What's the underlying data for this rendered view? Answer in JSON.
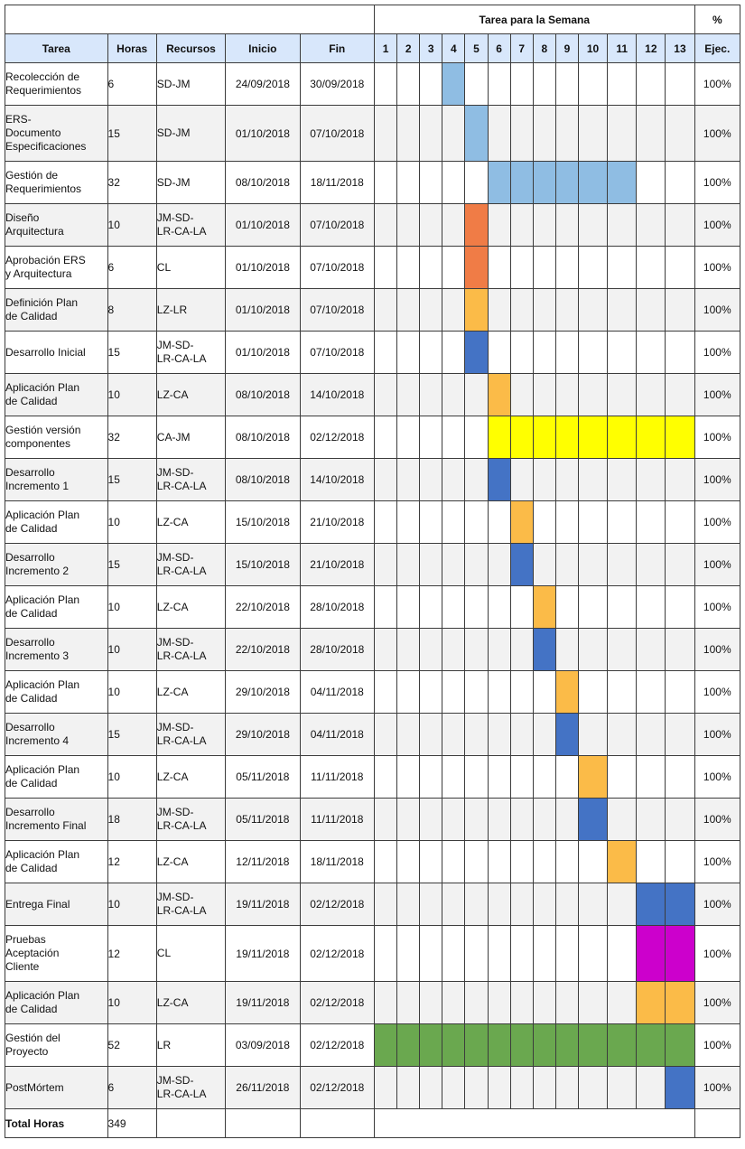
{
  "header": {
    "weeks_title": "Tarea para la Semana",
    "percent_top": "%",
    "col_task": "Tarea",
    "col_hours": "Horas",
    "col_resources": "Recursos",
    "col_start": "Inicio",
    "col_end": "Fin",
    "col_exec": "Ejec.",
    "weeks": [
      "1",
      "2",
      "3",
      "4",
      "5",
      "6",
      "7",
      "8",
      "9",
      "10",
      "11",
      "12",
      "13"
    ]
  },
  "colors": {
    "light_blue": "#8fbde3",
    "orange": "#f07c46",
    "amber": "#fbbb48",
    "blue": "#4473c5",
    "yellow": "#ffff00",
    "magenta": "#cc00cc",
    "green": "#6aa84f"
  },
  "rows": [
    {
      "task": [
        "Recolección de",
        "Requerimientos"
      ],
      "hours": "6",
      "resources": [
        "SD-JM"
      ],
      "start": "24/09/2018",
      "end": "30/09/2018",
      "pct": "100%",
      "weeks": [
        4
      ],
      "color": "light_blue",
      "height": 47
    },
    {
      "task": [
        "ERS-",
        "Documento",
        "Especificaciones"
      ],
      "hours": "15",
      "resources": [
        "SD-JM"
      ],
      "start": "01/10/2018",
      "end": "07/10/2018",
      "pct": "100%",
      "weeks": [
        5
      ],
      "color": "light_blue",
      "height": 62
    },
    {
      "task": [
        "Gestión de",
        "Requerimientos"
      ],
      "hours": "32",
      "resources": [
        "SD-JM"
      ],
      "start": "08/10/2018",
      "end": "18/11/2018",
      "pct": "100%",
      "weeks": [
        6,
        7,
        8,
        9,
        10,
        11
      ],
      "color": "light_blue",
      "height": 47
    },
    {
      "task": [
        "Diseño",
        "Arquitectura"
      ],
      "hours": "10",
      "resources": [
        "JM-SD-",
        "LR-CA-LA"
      ],
      "start": "01/10/2018",
      "end": "07/10/2018",
      "pct": "100%",
      "weeks": [
        5
      ],
      "color": "orange",
      "height": 47
    },
    {
      "task": [
        "Aprobación ERS",
        "y Arquitectura"
      ],
      "hours": "6",
      "resources": [
        "CL"
      ],
      "start": "01/10/2018",
      "end": "07/10/2018",
      "pct": "100%",
      "weeks": [
        5
      ],
      "color": "orange",
      "height": 47
    },
    {
      "task": [
        "Definición Plan",
        "de Calidad"
      ],
      "hours": "8",
      "resources": [
        "LZ-LR"
      ],
      "start": "01/10/2018",
      "end": "07/10/2018",
      "pct": "100%",
      "weeks": [
        5
      ],
      "color": "amber",
      "height": 47
    },
    {
      "task": [
        "Desarrollo Inicial"
      ],
      "hours": "15",
      "resources": [
        "JM-SD-",
        "LR-CA-LA"
      ],
      "start": "01/10/2018",
      "end": "07/10/2018",
      "pct": "100%",
      "weeks": [
        5
      ],
      "color": "blue",
      "height": 47
    },
    {
      "task": [
        "Aplicación Plan",
        "de Calidad"
      ],
      "hours": "10",
      "resources": [
        "LZ-CA"
      ],
      "start": "08/10/2018",
      "end": "14/10/2018",
      "pct": "100%",
      "weeks": [
        6
      ],
      "color": "amber",
      "height": 47
    },
    {
      "task": [
        "Gestión versión",
        "componentes"
      ],
      "hours": "32",
      "resources": [
        "CA-JM"
      ],
      "start": "08/10/2018",
      "end": "02/12/2018",
      "pct": "100%",
      "weeks": [
        6,
        7,
        8,
        9,
        10,
        11,
        12,
        13
      ],
      "color": "yellow",
      "height": 47
    },
    {
      "task": [
        "Desarrollo",
        "Incremento 1"
      ],
      "hours": "15",
      "resources": [
        "JM-SD-",
        "LR-CA-LA"
      ],
      "start": "08/10/2018",
      "end": "14/10/2018",
      "pct": "100%",
      "weeks": [
        6
      ],
      "color": "blue",
      "height": 47
    },
    {
      "task": [
        "Aplicación Plan",
        "de Calidad"
      ],
      "hours": "10",
      "resources": [
        "LZ-CA"
      ],
      "start": "15/10/2018",
      "end": "21/10/2018",
      "pct": "100%",
      "weeks": [
        7
      ],
      "color": "amber",
      "height": 47
    },
    {
      "task": [
        "Desarrollo",
        "Incremento 2"
      ],
      "hours": "15",
      "resources": [
        "JM-SD-",
        "LR-CA-LA"
      ],
      "start": "15/10/2018",
      "end": "21/10/2018",
      "pct": "100%",
      "weeks": [
        7
      ],
      "color": "blue",
      "height": 47
    },
    {
      "task": [
        "Aplicación Plan",
        "de Calidad"
      ],
      "hours": "10",
      "resources": [
        "LZ-CA"
      ],
      "start": "22/10/2018",
      "end": "28/10/2018",
      "pct": "100%",
      "weeks": [
        8
      ],
      "color": "amber",
      "height": 47
    },
    {
      "task": [
        "Desarrollo",
        "Incremento 3"
      ],
      "hours": "10",
      "resources": [
        "JM-SD-",
        "LR-CA-LA"
      ],
      "start": "22/10/2018",
      "end": "28/10/2018",
      "pct": "100%",
      "weeks": [
        8
      ],
      "color": "blue",
      "height": 47
    },
    {
      "task": [
        "Aplicación Plan",
        "de Calidad"
      ],
      "hours": "10",
      "resources": [
        "LZ-CA"
      ],
      "start": "29/10/2018",
      "end": "04/11/2018",
      "pct": "100%",
      "weeks": [
        9
      ],
      "color": "amber",
      "height": 47
    },
    {
      "task": [
        "Desarrollo",
        "Incremento 4"
      ],
      "hours": "15",
      "resources": [
        "JM-SD-",
        "LR-CA-LA"
      ],
      "start": "29/10/2018",
      "end": "04/11/2018",
      "pct": "100%",
      "weeks": [
        9
      ],
      "color": "blue",
      "height": 47
    },
    {
      "task": [
        "Aplicación Plan",
        "de Calidad"
      ],
      "hours": "10",
      "resources": [
        "LZ-CA"
      ],
      "start": "05/11/2018",
      "end": "11/11/2018",
      "pct": "100%",
      "weeks": [
        10
      ],
      "color": "amber",
      "height": 47
    },
    {
      "task": [
        "Desarrollo",
        "Incremento Final"
      ],
      "hours": "18",
      "resources": [
        "JM-SD-",
        "LR-CA-LA"
      ],
      "start": "05/11/2018",
      "end": "11/11/2018",
      "pct": "100%",
      "weeks": [
        10
      ],
      "color": "blue",
      "height": 47
    },
    {
      "task": [
        "Aplicación Plan",
        "de Calidad"
      ],
      "hours": "12",
      "resources": [
        "LZ-CA"
      ],
      "start": "12/11/2018",
      "end": "18/11/2018",
      "pct": "100%",
      "weeks": [
        11
      ],
      "color": "amber",
      "height": 47
    },
    {
      "task": [
        "Entrega Final"
      ],
      "hours": "10",
      "resources": [
        "JM-SD-",
        "LR-CA-LA"
      ],
      "start": "19/11/2018",
      "end": "02/12/2018",
      "pct": "100%",
      "weeks": [
        12,
        13
      ],
      "color": "blue",
      "height": 47
    },
    {
      "task": [
        "Pruebas",
        "Aceptación",
        "Cliente"
      ],
      "hours": "12",
      "resources": [
        "CL"
      ],
      "start": "19/11/2018",
      "end": "02/12/2018",
      "pct": "100%",
      "weeks": [
        12,
        13
      ],
      "color": "magenta",
      "height": 62
    },
    {
      "task": [
        "Aplicación Plan",
        "de Calidad"
      ],
      "hours": "10",
      "resources": [
        "LZ-CA"
      ],
      "start": "19/11/2018",
      "end": "02/12/2018",
      "pct": "100%",
      "weeks": [
        12,
        13
      ],
      "color": "amber",
      "height": 47
    },
    {
      "task": [
        "Gestión del",
        "Proyecto"
      ],
      "hours": "52",
      "resources": [
        "LR"
      ],
      "start": "03/09/2018",
      "end": "02/12/2018",
      "pct": "100%",
      "weeks": [
        1,
        2,
        3,
        4,
        5,
        6,
        7,
        8,
        9,
        10,
        11,
        12,
        13
      ],
      "color": "green",
      "height": 47
    },
    {
      "task": [
        "PostMórtem"
      ],
      "hours": "6",
      "resources": [
        "JM-SD-",
        "LR-CA-LA"
      ],
      "start": "26/11/2018",
      "end": "02/12/2018",
      "pct": "100%",
      "weeks": [
        13
      ],
      "color": "blue",
      "height": 47
    }
  ],
  "total": {
    "label": "Total Horas",
    "hours": "349"
  }
}
